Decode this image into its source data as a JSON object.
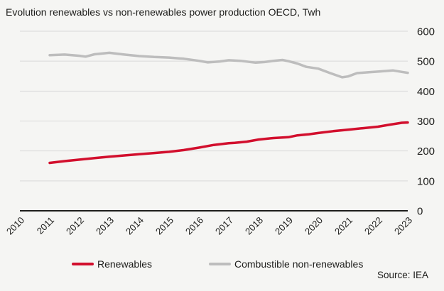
{
  "window": {
    "background": "#f5f5f3",
    "text_color": "#1d1d1b"
  },
  "chart_data": {
    "type": "line",
    "title": "Evolution renewables vs non-renewables power production OECD, Twh",
    "source": "Source: IEA",
    "unit": "Twh",
    "categories": [
      "2010",
      "2011",
      "2012",
      "2013",
      "2014",
      "2015",
      "2016",
      "2017",
      "2018",
      "2019",
      "2020",
      "2021",
      "2022",
      "2023"
    ],
    "xlim": [
      2010,
      2023
    ],
    "ylim": [
      0,
      600
    ],
    "yticks": [
      0,
      100,
      200,
      300,
      400,
      500,
      600
    ],
    "grid": true,
    "axis_side": "right",
    "legend_position": "bottom",
    "colors": {
      "grid": "#d9d9d9",
      "axis": "#1d1d1b",
      "background": "#f5f5f3"
    },
    "series": [
      {
        "name": "Renewables",
        "color": "#d20f2d",
        "x": [
          2011,
          2011.5,
          2012,
          2012.5,
          2013,
          2013.5,
          2014,
          2014.5,
          2015,
          2015.5,
          2016,
          2016.5,
          2017,
          2017.2,
          2017.6,
          2018,
          2018.5,
          2019,
          2019.3,
          2019.7,
          2020,
          2020.5,
          2021,
          2021.5,
          2022,
          2022.4,
          2022.8,
          2023
        ],
        "values": [
          160,
          166,
          171,
          176,
          181,
          185,
          189,
          193,
          197,
          203,
          211,
          220,
          226,
          227,
          231,
          238,
          243,
          246,
          252,
          256,
          260,
          266,
          271,
          276,
          281,
          288,
          294,
          295
        ]
      },
      {
        "name": "Combustible non-renewables",
        "color": "#bdbdbd",
        "x": [
          2011,
          2011.5,
          2012,
          2012.2,
          2012.5,
          2013,
          2013.5,
          2014,
          2014.5,
          2015,
          2015.5,
          2016,
          2016.3,
          2016.7,
          2017,
          2017.4,
          2017.9,
          2018.2,
          2018.5,
          2018.8,
          2019,
          2019.3,
          2019.6,
          2020,
          2020.4,
          2020.8,
          2021,
          2021.3,
          2021.7,
          2022,
          2022.5,
          2022.8,
          2023
        ],
        "values": [
          520,
          522,
          518,
          515,
          523,
          528,
          522,
          517,
          514,
          512,
          508,
          501,
          496,
          499,
          503,
          501,
          495,
          497,
          501,
          504,
          500,
          492,
          481,
          475,
          460,
          446,
          449,
          460,
          463,
          465,
          469,
          464,
          461
        ]
      }
    ]
  }
}
